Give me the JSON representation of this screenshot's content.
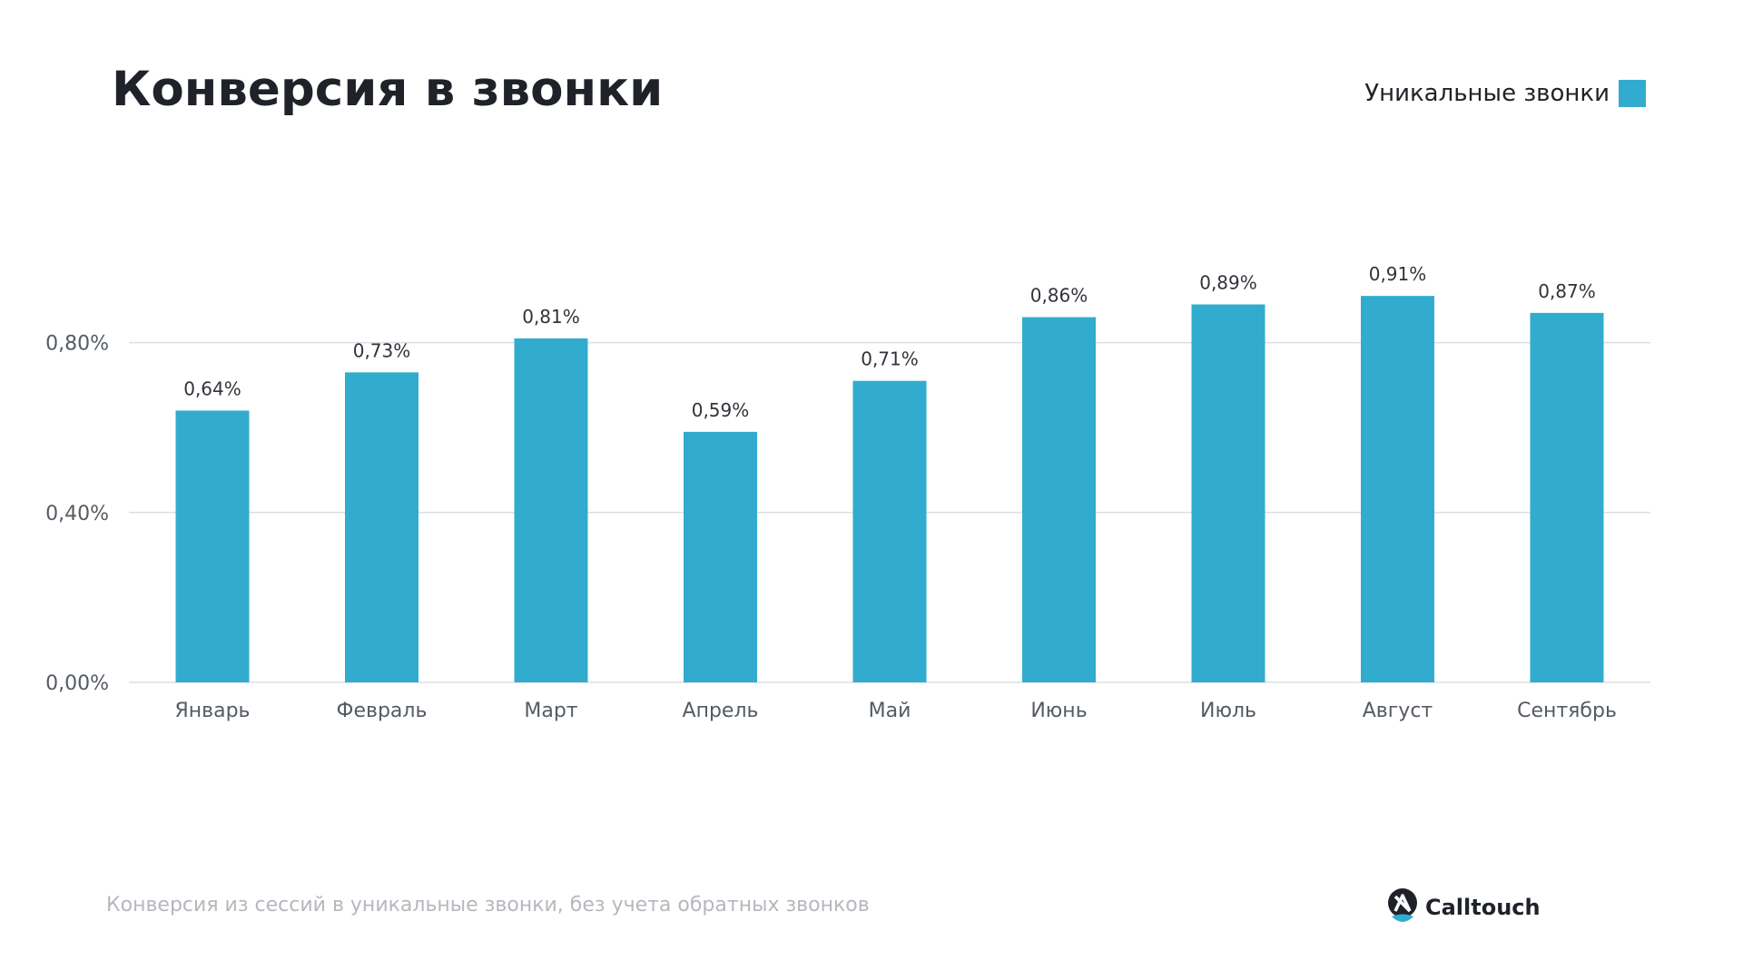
{
  "title": "Конверсия в звонки",
  "legend": {
    "label": "Уникальные звонки",
    "color": "#31acce"
  },
  "footnote": "Конверсия из сессий в уникальные звонки, без учета обратных звонков",
  "brand": {
    "name": "Calltouch",
    "logo_icon": "calltouch-logo-icon"
  },
  "colors": {
    "bar": "#31acce",
    "grid": "#dcdfe3",
    "text": "#1f2329",
    "muted": "#b4b8bd"
  },
  "chart_data": {
    "type": "bar",
    "title": "Конверсия в звонки",
    "xlabel": "",
    "ylabel": "",
    "ylim": [
      0,
      1.0
    ],
    "grid": true,
    "legend_position": "top-right",
    "y_ticks": [
      {
        "value": 0,
        "label": "0,00%"
      },
      {
        "value": 0.4,
        "label": "0,40%"
      },
      {
        "value": 0.8,
        "label": "0,80%"
      }
    ],
    "categories": [
      "Январь",
      "Февраль",
      "Март",
      "Апрель",
      "Май",
      "Июнь",
      "Июль",
      "Август",
      "Сентябрь"
    ],
    "series": [
      {
        "name": "Уникальные звонки",
        "values": [
          0.64,
          0.73,
          0.81,
          0.59,
          0.71,
          0.86,
          0.89,
          0.91,
          0.87
        ],
        "labels": [
          "0,64%",
          "0,73%",
          "0,81%",
          "0,59%",
          "0,71%",
          "0,86%",
          "0,89%",
          "0,91%",
          "0,87%"
        ]
      }
    ]
  }
}
